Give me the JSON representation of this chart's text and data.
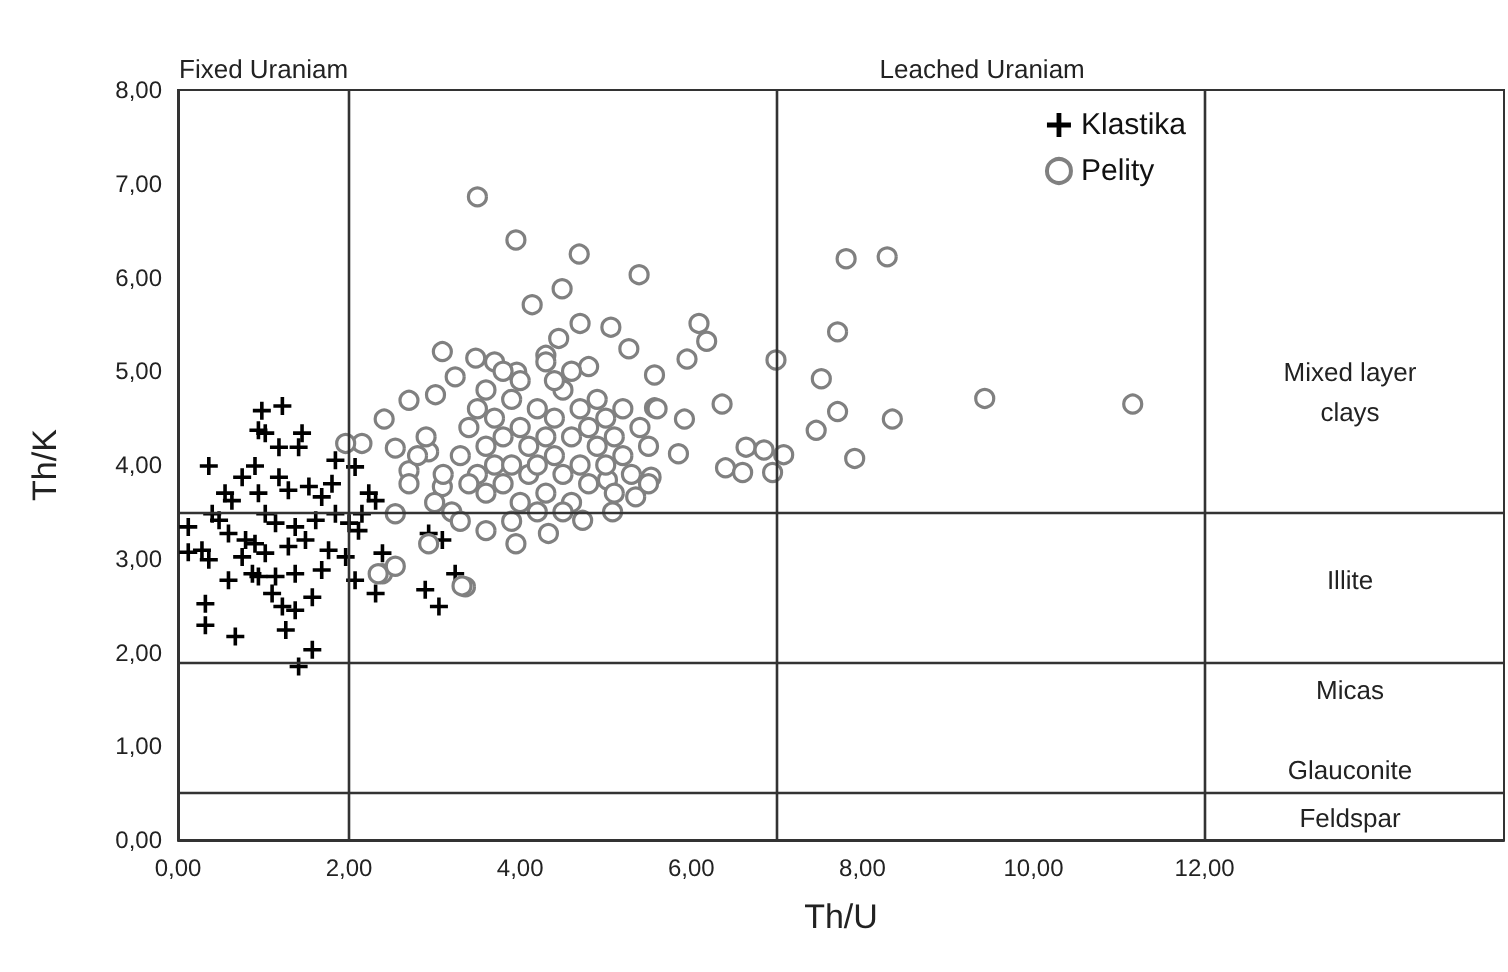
{
  "chart_data": {
    "type": "scatter",
    "xlabel": "Th/U",
    "ylabel": "Th/K",
    "xlim": [
      0,
      15.5
    ],
    "ylim": [
      0,
      8
    ],
    "xticks": [
      {
        "value": 0,
        "label": "0,00"
      },
      {
        "value": 2,
        "label": "2,00"
      },
      {
        "value": 4,
        "label": "4,00"
      },
      {
        "value": 6,
        "label": "6,00"
      },
      {
        "value": 8,
        "label": "8,00"
      },
      {
        "value": 10,
        "label": "10,00"
      },
      {
        "value": 12,
        "label": "12,00"
      }
    ],
    "yticks": [
      {
        "value": 0,
        "label": "0,00"
      },
      {
        "value": 1,
        "label": "1,00"
      },
      {
        "value": 2,
        "label": "2,00"
      },
      {
        "value": 3,
        "label": "3,00"
      },
      {
        "value": 4,
        "label": "4,00"
      },
      {
        "value": 5,
        "label": "5,00"
      },
      {
        "value": 6,
        "label": "6,00"
      },
      {
        "value": 7,
        "label": "7,00"
      },
      {
        "value": 8,
        "label": "8,00"
      }
    ],
    "grid": false,
    "legend": "top right",
    "series": [
      {
        "name": "Klastika",
        "color": "#000000",
        "marker": "cross",
        "x": [
          0.98,
          1.22,
          0.94,
          1.02,
          1.45,
          1.18,
          1.41,
          0.36,
          0.9,
          0.75,
          1.18,
          1.84,
          2.07,
          1.8,
          1.53,
          0.55,
          0.63,
          0.94,
          1.29,
          1.68,
          2.23,
          2.31,
          0.12,
          0.4,
          0.48,
          0.59,
          0.79,
          1.02,
          1.14,
          1.37,
          1.61,
          1.84,
          2.0,
          2.15,
          0.28,
          0.36,
          0.75,
          0.9,
          1.02,
          1.29,
          1.49,
          1.76,
          1.96,
          2.11,
          0.94,
          1.14,
          1.37,
          1.68,
          2.07,
          1.1,
          1.57,
          0.32,
          1.22,
          1.37,
          0.32,
          0.67,
          1.26,
          1.57,
          1.41,
          2.39,
          2.93,
          3.09,
          3.24,
          2.89,
          3.05,
          2.31,
          0.12,
          0.59,
          0.87
        ],
        "values": [
          4.58,
          4.63,
          4.37,
          4.34,
          4.34,
          4.19,
          4.19,
          3.99,
          3.99,
          3.87,
          3.87,
          4.05,
          3.98,
          3.8,
          3.77,
          3.7,
          3.62,
          3.7,
          3.73,
          3.66,
          3.7,
          3.62,
          3.34,
          3.48,
          3.41,
          3.27,
          3.2,
          3.48,
          3.38,
          3.34,
          3.41,
          3.48,
          3.38,
          3.48,
          3.09,
          2.99,
          3.02,
          3.16,
          3.06,
          3.13,
          3.2,
          3.09,
          3.02,
          3.3,
          2.81,
          2.81,
          2.84,
          2.88,
          2.77,
          2.63,
          2.59,
          2.52,
          2.49,
          2.45,
          2.29,
          2.17,
          2.24,
          2.03,
          1.85,
          3.06,
          3.27,
          3.2,
          2.84,
          2.67,
          2.49,
          2.63,
          3.07,
          2.77,
          2.84
        ]
      },
      {
        "name": "Pelity",
        "color": "#808080",
        "marker": "circle",
        "x": [
          3.5,
          3.95,
          4.69,
          5.39,
          4.49,
          4.14,
          4.7,
          5.06,
          6.09,
          6.18,
          4.45,
          3.09,
          3.48,
          3.7,
          4.3,
          5.27,
          5.95,
          6.36,
          2.41,
          2.7,
          3.01,
          3.24,
          3.96,
          4.8,
          5.57,
          5.57,
          5.92,
          2.15,
          1.96,
          2.54,
          2.93,
          5.85,
          6.4,
          5.53,
          5.02,
          2.7,
          3.09,
          5.35,
          4.73,
          5.08,
          4.33,
          3.95,
          3.6,
          3.36,
          2.93,
          2.54,
          2.39,
          6.64,
          6.85,
          6.6,
          6.95,
          7.08,
          6.99,
          7.81,
          8.29,
          7.71,
          7.52,
          7.71,
          7.46,
          8.35,
          7.91,
          9.43,
          11.16,
          2.34,
          2.54,
          3.32,
          3.3,
          3.4,
          3.5,
          3.5,
          3.6,
          3.6,
          3.7,
          3.7,
          3.8,
          3.8,
          3.9,
          3.9,
          4.0,
          4.0,
          4.1,
          4.1,
          4.2,
          4.2,
          4.3,
          4.3,
          4.4,
          4.4,
          4.5,
          4.5,
          4.6,
          4.6,
          4.7,
          4.7,
          4.8,
          4.8,
          4.9,
          4.9,
          5.0,
          5.0,
          5.1,
          5.1,
          5.2,
          5.2,
          5.3,
          5.4,
          3.2,
          3.4,
          3.6,
          3.8,
          4.0,
          4.4,
          4.6,
          3.1,
          2.9,
          2.7,
          3.0,
          4.2,
          4.5,
          3.9,
          3.3,
          2.8,
          5.5,
          5.5,
          5.6,
          4.3
        ],
        "values": [
          6.86,
          6.4,
          6.25,
          6.03,
          5.88,
          5.71,
          5.51,
          5.47,
          5.51,
          5.32,
          5.35,
          5.21,
          5.14,
          5.1,
          5.17,
          5.24,
          5.13,
          4.65,
          4.49,
          4.69,
          4.75,
          4.94,
          4.99,
          5.05,
          4.96,
          4.61,
          4.49,
          4.23,
          4.23,
          4.18,
          4.14,
          4.12,
          3.97,
          3.87,
          3.84,
          3.94,
          3.77,
          3.66,
          3.41,
          3.5,
          3.27,
          3.16,
          3.3,
          2.7,
          3.16,
          3.48,
          2.84,
          4.19,
          4.16,
          3.92,
          3.92,
          4.11,
          5.12,
          6.2,
          6.22,
          5.42,
          4.92,
          4.57,
          4.37,
          4.49,
          4.07,
          4.71,
          4.65,
          2.84,
          2.92,
          2.71,
          4.1,
          4.4,
          3.9,
          4.6,
          4.2,
          3.7,
          4.0,
          4.5,
          4.3,
          3.8,
          4.7,
          4.0,
          4.4,
          3.6,
          4.2,
          3.9,
          4.6,
          4.0,
          4.3,
          3.7,
          4.5,
          4.1,
          3.9,
          4.8,
          4.3,
          3.6,
          4.6,
          4.0,
          4.4,
          3.8,
          4.2,
          4.7,
          4.0,
          4.5,
          4.3,
          3.7,
          4.6,
          4.1,
          3.9,
          4.4,
          3.5,
          3.8,
          4.8,
          5.0,
          4.9,
          4.9,
          5.0,
          3.9,
          4.3,
          3.8,
          3.6,
          3.5,
          3.5,
          3.4,
          3.4,
          4.1,
          4.2,
          3.8,
          4.6,
          5.1
        ]
      }
    ],
    "ref_lines": [
      {
        "axis": "x",
        "value": 2,
        "color": "#333333"
      },
      {
        "axis": "x",
        "value": 7,
        "color": "#333333"
      },
      {
        "axis": "x",
        "value": 12,
        "color": "#333333"
      },
      {
        "axis": "y",
        "value": 3.5,
        "color": "#333333"
      },
      {
        "axis": "y",
        "value": 1.9,
        "color": "#333333"
      },
      {
        "axis": "y",
        "value": 0.5,
        "color": "#333333"
      }
    ],
    "annotations": [
      "Fixed Uraniam",
      "Leached Uraniam",
      "Mixed layer clays",
      "Illite",
      "Micas",
      "Glauconite",
      "Feldspar"
    ]
  }
}
